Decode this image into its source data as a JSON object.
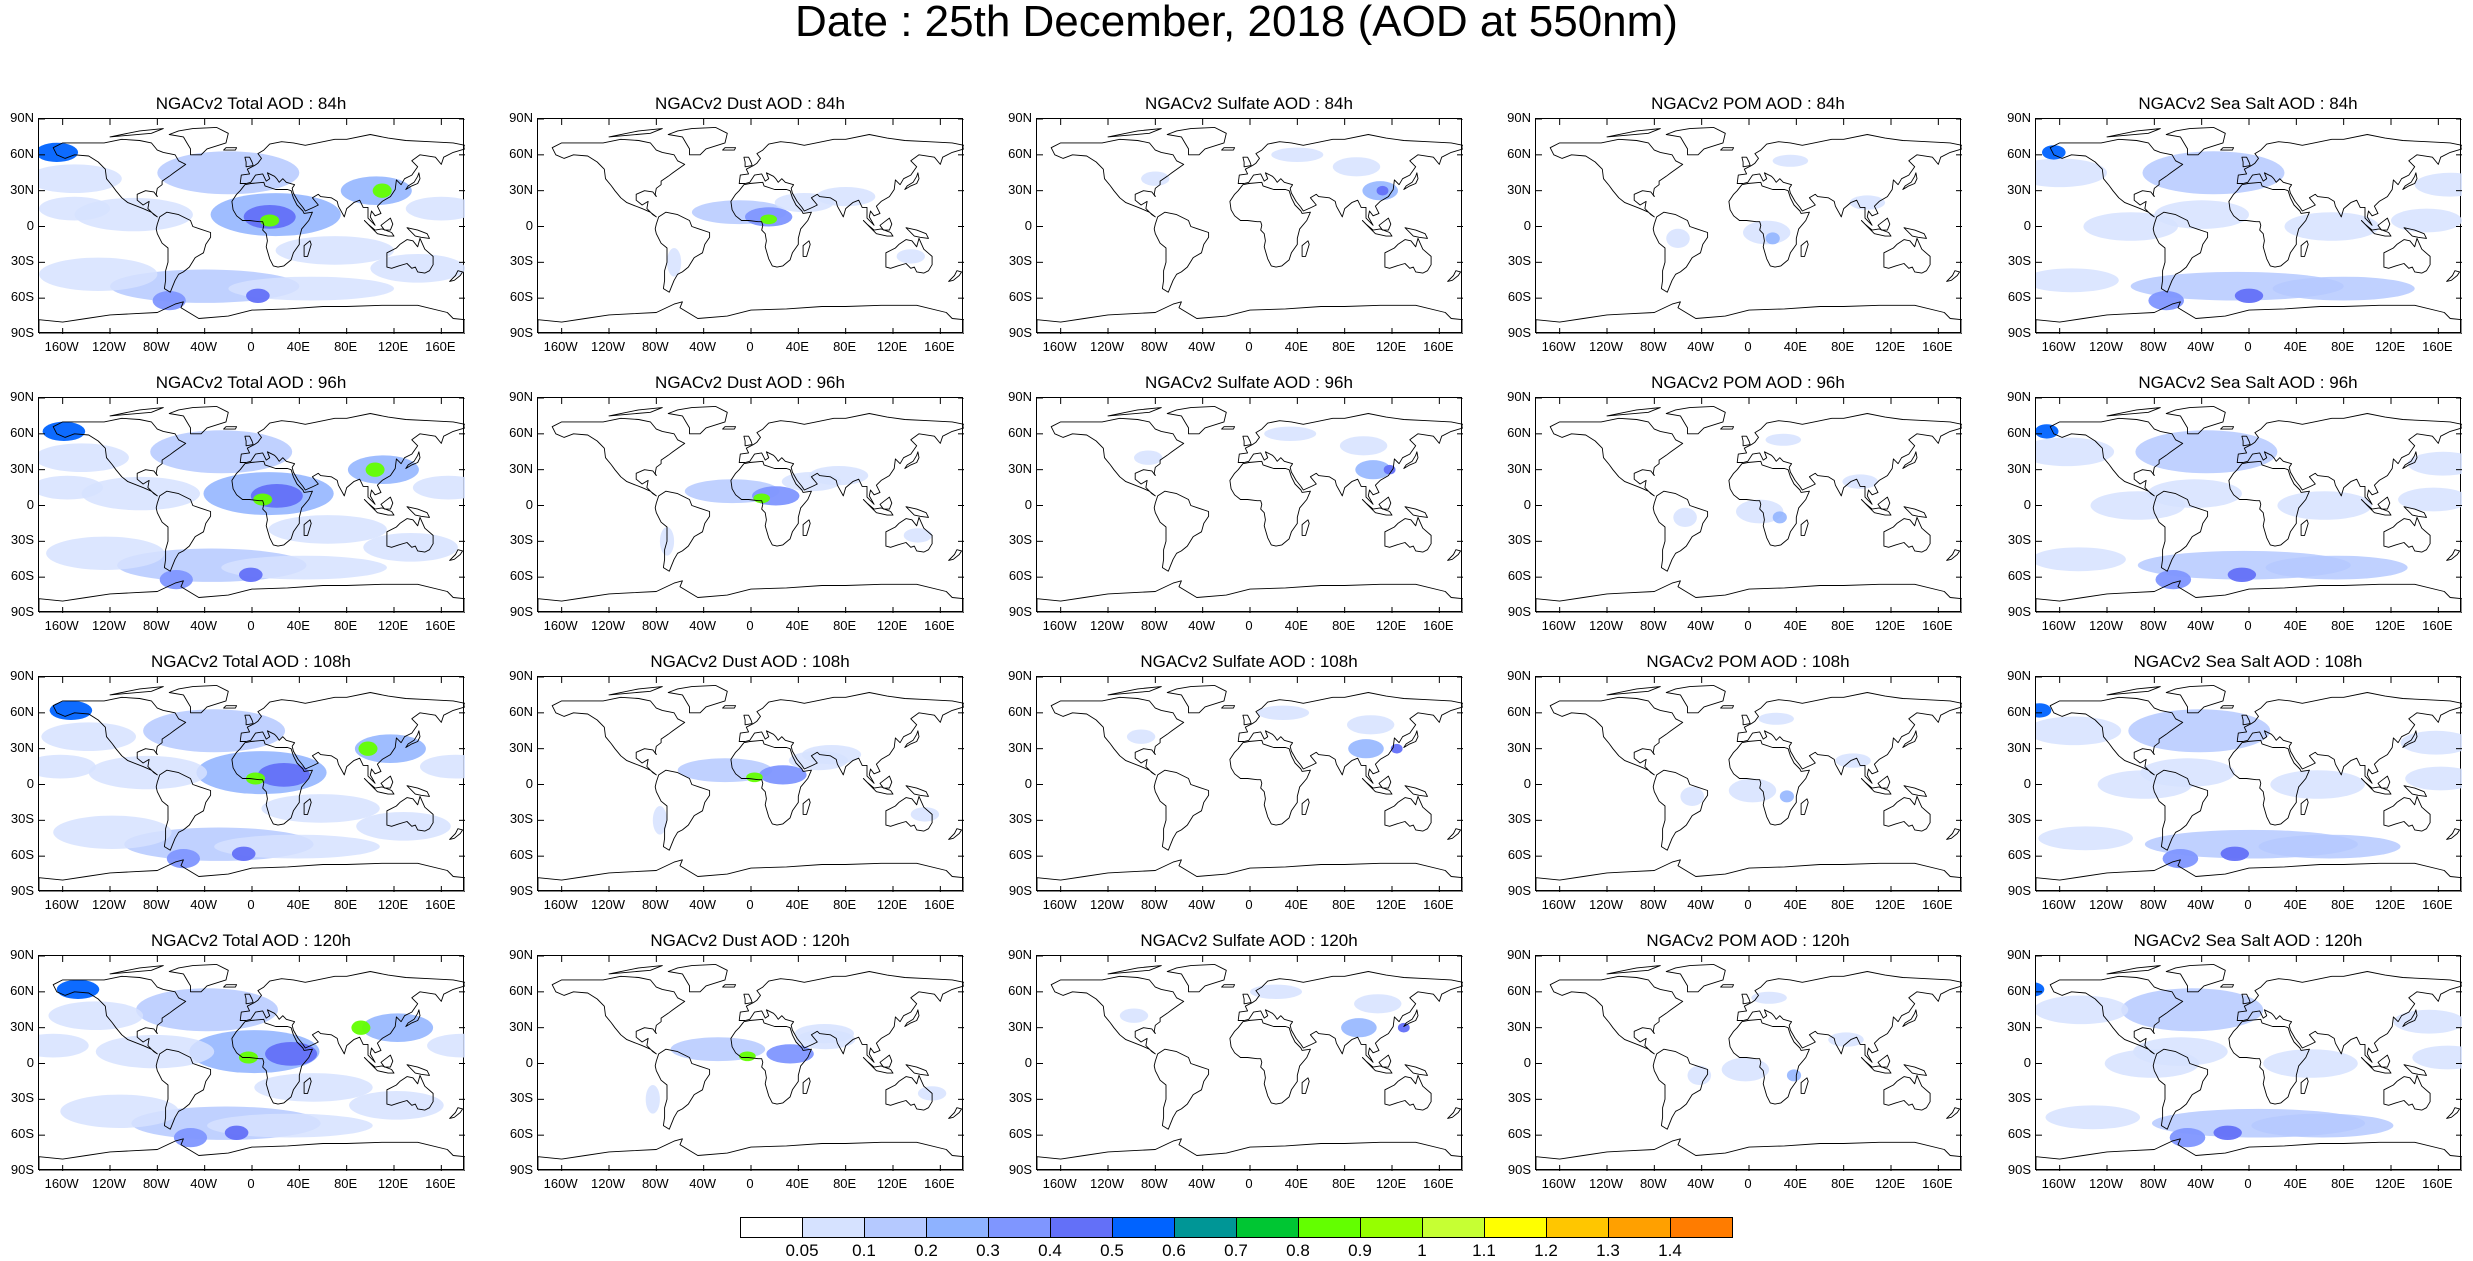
{
  "title": "Date : 25th December, 2018 (AOD at 550nm)",
  "rows": [
    {
      "hour": "84h",
      "titles": [
        "NGACv2 Total AOD : 84h",
        "NGACv2 Dust AOD : 84h",
        "NGACv2 Sulfate AOD : 84h",
        "NGACv2 POM AOD : 84h",
        "NGACv2 Sea Salt AOD : 84h"
      ]
    },
    {
      "hour": "96h",
      "titles": [
        "NGACv2 Total AOD : 96h",
        "NGACv2 Dust AOD : 96h",
        "NGACv2 Sulfate AOD : 96h",
        "NGACv2 POM AOD : 96h",
        "NGACv2 Sea Salt AOD : 96h"
      ]
    },
    {
      "hour": "108h",
      "titles": [
        "NGACv2 Total AOD : 108h",
        "NGACv2 Dust AOD : 108h",
        "NGACv2 Sulfate AOD : 108h",
        "NGACv2 POM AOD : 108h",
        "NGACv2 Sea Salt AOD : 108h"
      ]
    },
    {
      "hour": "120h",
      "titles": [
        "NGACv2 Total AOD : 120h",
        "NGACv2 Dust AOD : 120h",
        "NGACv2 Sulfate AOD : 120h",
        "NGACv2 POM AOD : 120h",
        "NGACv2 Sea Salt  AOD : 120h"
      ]
    }
  ],
  "species": [
    "Total",
    "Dust",
    "Sulfate",
    "POM",
    "Sea Salt"
  ],
  "lat_labels": [
    "90N",
    "60N",
    "30N",
    "0",
    "30S",
    "60S",
    "90S"
  ],
  "lon_labels": [
    "160W",
    "120W",
    "80W",
    "40W",
    "0",
    "40E",
    "80E",
    "120E",
    "160E"
  ],
  "colorbar": {
    "labels": [
      "0.05",
      "0.1",
      "0.2",
      "0.3",
      "0.4",
      "0.5",
      "0.6",
      "0.7",
      "0.8",
      "0.9",
      "1",
      "1.1",
      "1.2",
      "1.3",
      "1.4"
    ],
    "colors": [
      "#ffffff",
      "#d6e2ff",
      "#b5c9ff",
      "#8eb2ff",
      "#7f96ff",
      "#6370f8",
      "#0063ff",
      "#009696",
      "#00c633",
      "#63ff00",
      "#96ff00",
      "#c6ff33",
      "#ffff00",
      "#ffc600",
      "#ffa000",
      "#ff7c00",
      "#ff1900"
    ]
  },
  "coast_color": "#000000"
}
